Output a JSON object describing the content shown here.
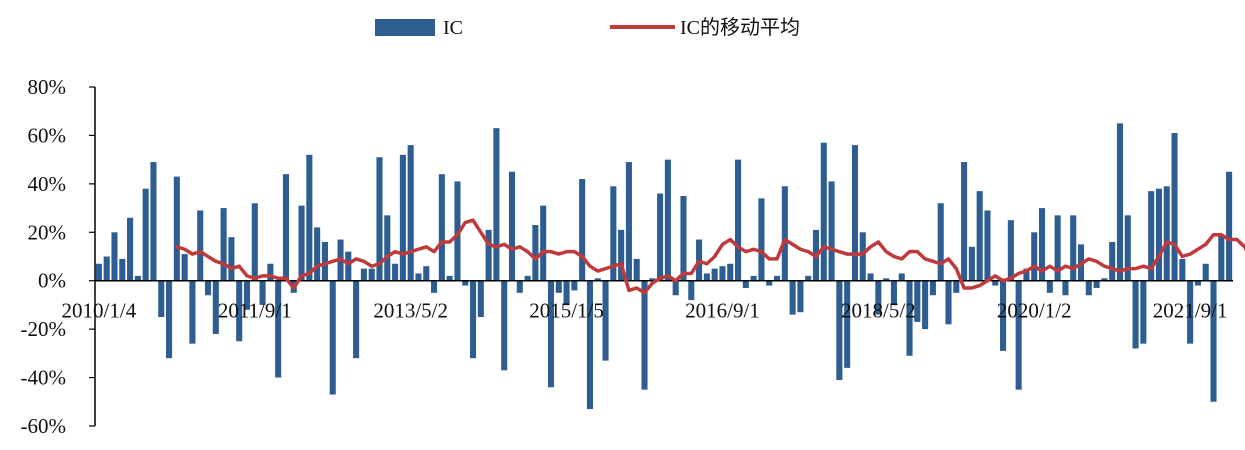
{
  "chart_data": {
    "type": "bar",
    "title": "",
    "xlabel": "",
    "ylabel": "",
    "ylim": [
      -0.6,
      0.8
    ],
    "yticks": [
      0.8,
      0.6,
      0.4,
      0.2,
      0.0,
      -0.2,
      -0.4,
      -0.6
    ],
    "ytick_labels": [
      "80%",
      "60%",
      "40%",
      "20%",
      "0%",
      "-20%",
      "-40%",
      "-60%"
    ],
    "xtick_labels": [
      "2010/1/4",
      "2011/9/1",
      "2013/5/2",
      "2015/1/5",
      "2016/9/1",
      "2018/5/2",
      "2020/1/2",
      "2021/9/1"
    ],
    "xtick_positions": [
      0,
      20,
      40,
      60,
      80,
      100,
      120,
      140
    ],
    "x_start": "2010/1/4",
    "x_end": "2021/9/1",
    "grid": false,
    "legend_position": "top-center",
    "colors": {
      "bar": "#2e5e91",
      "line": "#c0393b"
    },
    "series": [
      {
        "name": "IC",
        "kind": "bar",
        "values": [
          0.07,
          0.1,
          0.2,
          0.09,
          0.26,
          0.02,
          0.38,
          0.49,
          -0.15,
          -0.32,
          0.43,
          0.11,
          -0.26,
          0.29,
          -0.06,
          -0.22,
          0.3,
          0.18,
          -0.25,
          -0.12,
          0.32,
          -0.1,
          0.07,
          -0.4,
          0.44,
          -0.05,
          0.31,
          0.52,
          0.22,
          0.16,
          -0.47,
          0.17,
          0.12,
          -0.32,
          0.05,
          0.05,
          0.51,
          0.27,
          0.07,
          0.52,
          0.56,
          0.03,
          0.06,
          -0.05,
          0.44,
          0.02,
          0.41,
          -0.02,
          -0.32,
          -0.15,
          0.21,
          0.63,
          -0.37,
          0.45,
          -0.05,
          0.02,
          0.23,
          0.31,
          -0.44,
          -0.05,
          -0.1,
          -0.04,
          0.42,
          -0.53,
          0.01,
          -0.33,
          0.39,
          0.21,
          0.49,
          0.09,
          -0.45,
          0.01,
          0.36,
          0.5,
          -0.06,
          0.35,
          -0.08,
          0.17,
          0.03,
          0.05,
          0.06,
          0.07,
          0.5,
          -0.03,
          0.02,
          0.34,
          -0.02,
          0.02,
          0.39,
          -0.14,
          -0.13,
          0.02,
          0.21,
          0.57,
          0.41,
          -0.41,
          -0.36,
          0.56,
          0.2,
          0.03,
          -0.14,
          0.01,
          -0.1,
          0.03,
          -0.31,
          -0.17,
          -0.2,
          -0.06,
          0.32,
          -0.18,
          -0.05,
          0.49,
          0.14,
          0.37,
          0.29,
          -0.02,
          -0.29,
          0.25,
          -0.45,
          0.05,
          0.2,
          0.3,
          -0.05,
          0.27,
          -0.06,
          0.27,
          0.15,
          -0.06,
          -0.03,
          0.01,
          0.16,
          0.65,
          0.27,
          -0.28,
          -0.26,
          0.37,
          0.38,
          0.39,
          0.61,
          0.09,
          -0.26,
          -0.02,
          0.07,
          -0.5,
          0.19,
          0.45
        ]
      },
      {
        "name": "IC的移动平均",
        "kind": "line",
        "start_index": 10,
        "values": [
          0.14,
          0.13,
          0.11,
          0.12,
          0.1,
          0.08,
          0.07,
          0.05,
          0.06,
          0.02,
          0.01,
          0.02,
          0.02,
          0.01,
          0.01,
          -0.03,
          0.02,
          0.03,
          0.06,
          0.07,
          0.08,
          0.09,
          0.07,
          0.09,
          0.08,
          0.06,
          0.07,
          0.1,
          0.12,
          0.11,
          0.12,
          0.13,
          0.14,
          0.12,
          0.16,
          0.16,
          0.19,
          0.24,
          0.25,
          0.2,
          0.15,
          0.14,
          0.15,
          0.13,
          0.14,
          0.12,
          0.09,
          0.12,
          0.12,
          0.11,
          0.12,
          0.12,
          0.1,
          0.06,
          0.04,
          0.05,
          0.06,
          0.07,
          -0.04,
          -0.03,
          -0.05,
          -0.01,
          0.01,
          0.02,
          0.0,
          0.03,
          0.03,
          0.08,
          0.07,
          0.1,
          0.15,
          0.17,
          0.14,
          0.12,
          0.13,
          0.12,
          0.09,
          0.09,
          0.17,
          0.15,
          0.13,
          0.12,
          0.1,
          0.14,
          0.13,
          0.12,
          0.11,
          0.11,
          0.11,
          0.14,
          0.16,
          0.12,
          0.1,
          0.09,
          0.12,
          0.12,
          0.09,
          0.08,
          0.07,
          0.09,
          0.05,
          -0.03,
          -0.03,
          -0.02,
          0.0,
          0.02,
          0.0,
          0.01,
          0.03,
          0.04,
          0.06,
          0.04,
          0.06,
          0.04,
          0.06,
          0.05,
          0.07,
          0.09,
          0.08,
          0.06,
          0.05,
          0.04,
          0.05,
          0.05,
          0.06,
          0.05,
          0.1,
          0.16,
          0.15,
          0.1,
          0.11,
          0.13,
          0.15,
          0.19,
          0.19,
          0.17,
          0.17,
          0.14,
          0.07,
          0.11
        ]
      }
    ]
  }
}
